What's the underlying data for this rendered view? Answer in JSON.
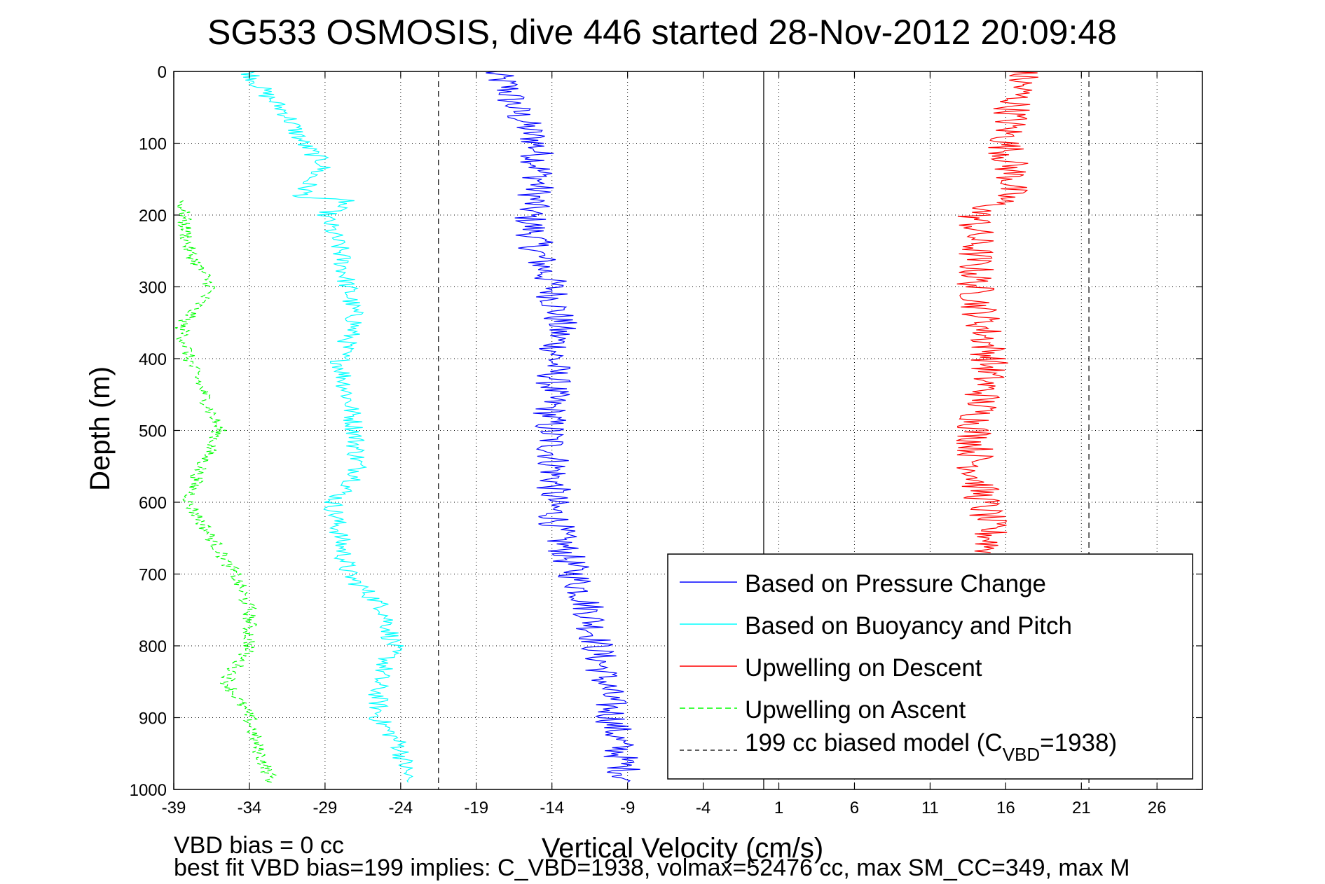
{
  "chart_data": {
    "type": "line",
    "title": "SG533 OSMOSIS, dive 446 started 28-Nov-2012 20:09:48",
    "xlabel": "Vertical Velocity (cm/s)",
    "ylabel": "Depth (m)",
    "xlim": [
      -39,
      29
    ],
    "ylim": [
      0,
      1000
    ],
    "y_reversed": true,
    "grid": true,
    "x_ticks": [
      -39,
      -34,
      -29,
      -24,
      -19,
      -14,
      -9,
      -4,
      1,
      6,
      11,
      16,
      21,
      26
    ],
    "y_ticks": [
      0,
      100,
      200,
      300,
      400,
      500,
      600,
      700,
      800,
      900,
      1000
    ],
    "legend_position": "bottom-right",
    "legend": [
      {
        "label": "Based on Pressure Change",
        "color": "#0000ff",
        "style": "solid"
      },
      {
        "label": "Based on Buoyancy and Pitch",
        "color": "#00ffff",
        "style": "solid"
      },
      {
        "label": "Upwelling on Descent",
        "color": "#ff0000",
        "style": "solid"
      },
      {
        "label": "Upwelling on Ascent",
        "color": "#00ff00",
        "style": "dashed"
      },
      {
        "label_main": "199 cc biased model (C",
        "label_sub": "VBD",
        "label_end": "=1938)",
        "color": "#000000",
        "style": "dashed"
      }
    ],
    "reference_lines": [
      {
        "x": -21.5,
        "color": "#000000",
        "style": "dashed"
      },
      {
        "x": 0,
        "color": "#000000",
        "style": "solid"
      },
      {
        "x": 21.5,
        "color": "#000000",
        "style": "dashed"
      }
    ],
    "series": [
      {
        "name": "Based on Pressure Change",
        "color": "#0000ff",
        "depth": [
          0,
          20,
          50,
          100,
          150,
          200,
          250,
          300,
          350,
          400,
          450,
          500,
          550,
          600,
          650,
          700,
          750,
          800,
          850,
          900,
          950,
          990
        ],
        "velocity": [
          -18,
          -17,
          -16.5,
          -15,
          -14.8,
          -15.5,
          -15,
          -14,
          -13.5,
          -13.8,
          -14,
          -14.2,
          -13.8,
          -14,
          -13.5,
          -12.5,
          -11.5,
          -11,
          -10.5,
          -10,
          -9.5,
          -9
        ]
      },
      {
        "name": "Based on Buoyancy and Pitch",
        "color": "#00ffff",
        "depth": [
          0,
          30,
          60,
          100,
          130,
          150,
          175,
          180,
          200,
          250,
          300,
          350,
          400,
          500,
          565,
          600,
          700,
          750,
          800,
          850,
          900,
          940,
          990
        ],
        "velocity": [
          -34,
          -33,
          -31.5,
          -30.5,
          -29,
          -30,
          -30.5,
          -27.5,
          -29,
          -28,
          -27.5,
          -27,
          -28,
          -27,
          -26.8,
          -28.5,
          -27.5,
          -25,
          -24.5,
          -25.5,
          -25.5,
          -24,
          -23.5
        ]
      },
      {
        "name": "Upwelling on Descent",
        "color": "#ff0000",
        "depth": [
          0,
          20,
          50,
          100,
          150,
          175,
          200,
          250,
          300,
          350,
          400,
          450,
          500,
          550,
          600,
          650,
          670
        ],
        "velocity": [
          17,
          17,
          16.5,
          16,
          16.5,
          16,
          14,
          14,
          14,
          14.5,
          15,
          14.5,
          14,
          14,
          14.5,
          15,
          15
        ]
      },
      {
        "name": "Upwelling on Ascent",
        "color": "#00ff00",
        "depth": [
          180,
          250,
          300,
          355,
          400,
          500,
          565,
          600,
          700,
          750,
          800,
          850,
          900,
          940,
          990
        ],
        "velocity": [
          -38.5,
          -38,
          -36.5,
          -38.5,
          -38,
          -36,
          -37.5,
          -38,
          -35,
          -34,
          -34,
          -35.5,
          -34,
          -33.5,
          -32.5
        ]
      },
      {
        "name": "199 cc biased model (C_VBD=1938)",
        "color": "#000000",
        "depth": [
          0,
          1000
        ],
        "velocity": [
          -21.5,
          -21.5
        ]
      }
    ]
  },
  "annotations": {
    "line1": "VBD bias = 0 cc",
    "line2": "best fit VBD bias=199 implies: C_VBD=1938, volmax=52476 cc, max SM_CC=349, max M"
  }
}
